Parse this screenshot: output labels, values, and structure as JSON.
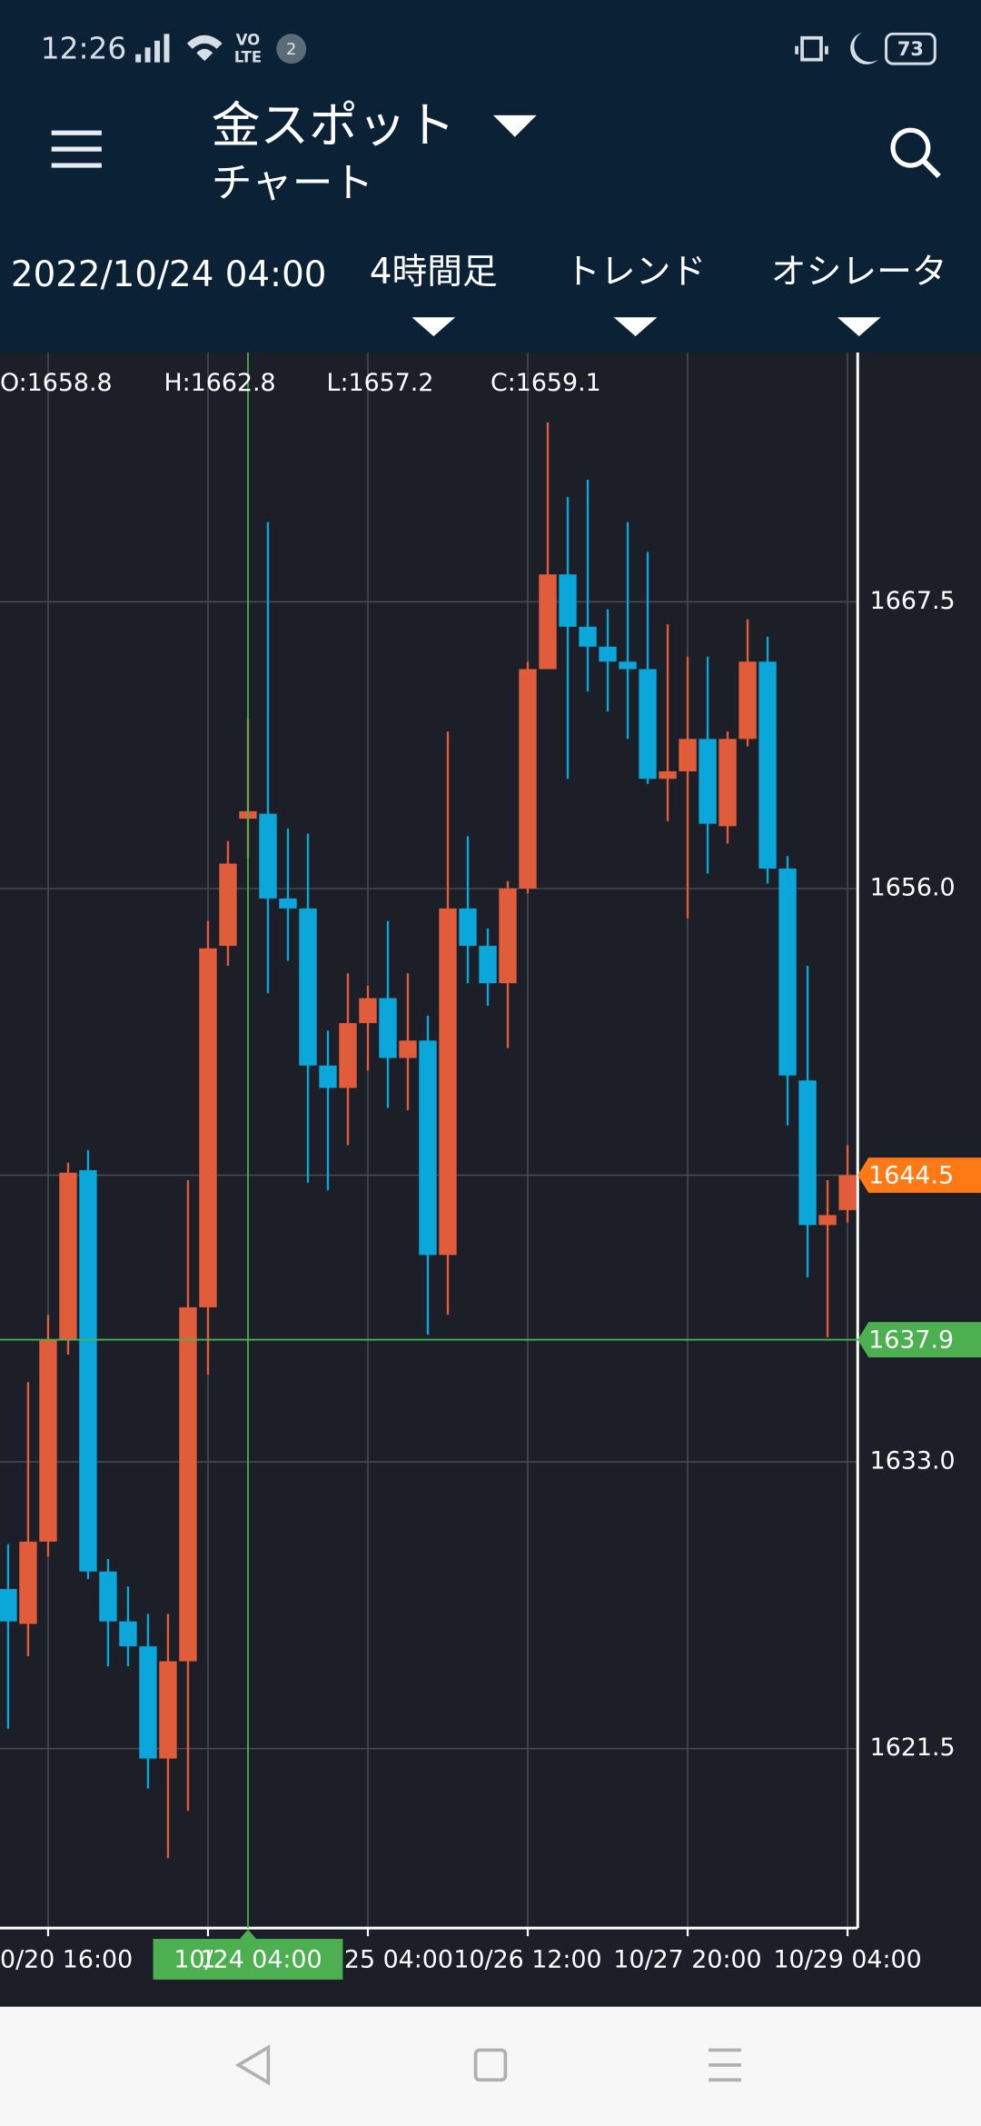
{
  "status_bar": {
    "time": "12:26",
    "network": [
      "VO",
      "LTE"
    ],
    "notification_count": "2",
    "battery": "73"
  },
  "header": {
    "title": "金スポット",
    "subtitle": "チャート"
  },
  "toolbar": {
    "datetime": "2022/10/24 04:00",
    "tabs": [
      "4時間足",
      "トレンド",
      "オシレータ"
    ]
  },
  "chart_data": {
    "type": "candlestick",
    "cursor_labels": [
      "O:1658.8",
      "H:1662.8",
      "L:1657.2",
      "C:1659.1"
    ],
    "categories": [
      null,
      null,
      "0/20 16:00",
      null,
      null,
      null,
      null,
      null,
      null,
      null,
      "1",
      null,
      "10/24 04:00",
      null,
      null,
      null,
      null,
      null,
      "25 04:00",
      null,
      null,
      null,
      null,
      null,
      null,
      null,
      "10/26 12:00",
      null,
      null,
      null,
      null,
      null,
      null,
      null,
      "10/27 20:00",
      null,
      null,
      null,
      null,
      null,
      null,
      null,
      "10/29 04:00"
    ],
    "open": [
      1627.9,
      1626.5,
      1629.8,
      1637.9,
      1644.7,
      1628.6,
      1626.6,
      1625.6,
      1621.1,
      1625.0,
      1639.2,
      1653.7,
      1658.8,
      1659.0,
      1655.6,
      1655.2,
      1648.9,
      1648.0,
      1650.6,
      1651.6,
      1649.2,
      1649.9,
      1641.3,
      1655.2,
      1653.7,
      1652.2,
      1656.0,
      1664.8,
      1668.6,
      1666.5,
      1665.7,
      1665.1,
      1664.8,
      1660.4,
      1660.7,
      1662.0,
      1658.5,
      1662.0,
      1665.1,
      1656.8,
      1648.3,
      1642.5,
      1643.1
    ],
    "high": [
      1629.7,
      1636.2,
      1638.9,
      1645.0,
      1645.5,
      1629.1,
      1628.0,
      1626.9,
      1626.9,
      1644.3,
      1654.7,
      1657.9,
      1662.8,
      1670.7,
      1658.4,
      1658.2,
      1650.3,
      1652.6,
      1652.1,
      1654.7,
      1652.6,
      1650.9,
      1662.3,
      1658.1,
      1654.4,
      1656.3,
      1665.1,
      1674.7,
      1671.7,
      1672.4,
      1667.2,
      1670.7,
      1669.5,
      1666.6,
      1665.3,
      1665.3,
      1662.3,
      1666.8,
      1666.1,
      1657.3,
      1652.9,
      1644.3,
      1645.7
    ],
    "low": [
      1622.3,
      1625.2,
      1629.2,
      1637.3,
      1628.3,
      1624.8,
      1624.8,
      1619.9,
      1617.1,
      1619.0,
      1636.5,
      1652.9,
      1657.2,
      1651.8,
      1653.1,
      1644.2,
      1643.9,
      1645.7,
      1648.7,
      1647.2,
      1647.1,
      1638.1,
      1638.9,
      1652.2,
      1651.3,
      1649.6,
      1655.8,
      1664.8,
      1660.4,
      1663.9,
      1663.1,
      1662.0,
      1660.2,
      1658.7,
      1654.8,
      1656.6,
      1657.8,
      1661.7,
      1656.2,
      1646.5,
      1640.4,
      1638.0,
      1642.6
    ],
    "close": [
      1626.6,
      1629.8,
      1637.9,
      1644.6,
      1628.6,
      1626.6,
      1625.6,
      1621.1,
      1625.0,
      1639.2,
      1653.6,
      1657.0,
      1659.1,
      1655.6,
      1655.2,
      1648.9,
      1648.0,
      1650.6,
      1651.6,
      1649.2,
      1649.9,
      1641.3,
      1655.2,
      1653.7,
      1652.2,
      1656.0,
      1664.8,
      1668.6,
      1666.5,
      1665.7,
      1665.1,
      1664.8,
      1660.4,
      1660.7,
      1662.0,
      1658.6,
      1662.0,
      1665.1,
      1656.8,
      1648.5,
      1642.5,
      1642.9,
      1644.5
    ],
    "up_color": "#e05c3b",
    "down_color": "#0ba6da",
    "ylim": [
      1614.3,
      1677.5
    ],
    "yticks": [
      1667.5,
      {
        "value": 1656,
        "label": "1656.0"
      },
      1644.5,
      {
        "value": 1633,
        "label": "1633.0"
      },
      1621.5
    ],
    "grid": true,
    "crosshair_x": "10/24 04:00",
    "crosshair_y": 1637.9,
    "crosshair_color": "#4caf50",
    "last_price_color": "#ff7a14"
  }
}
